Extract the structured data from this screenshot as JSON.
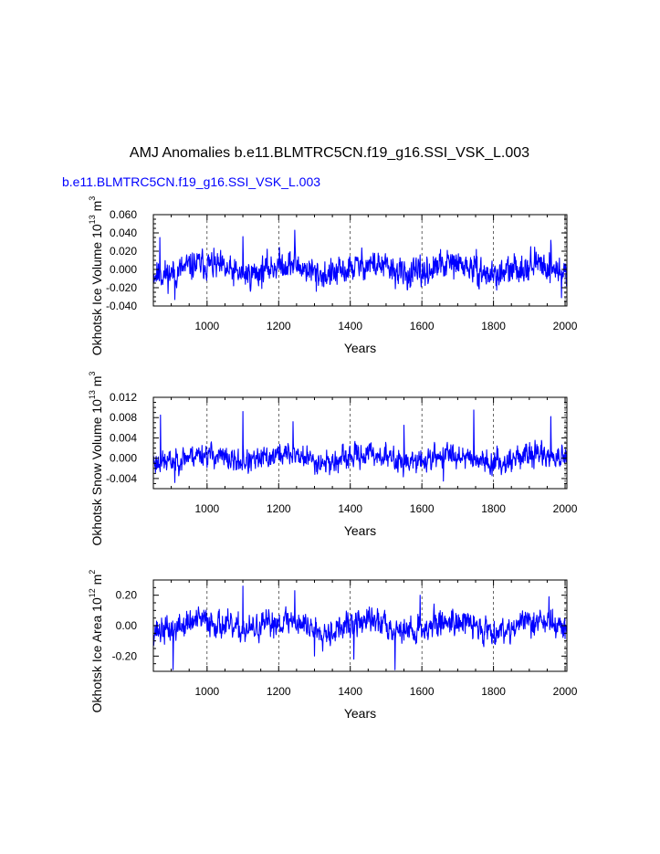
{
  "page": {
    "title": "AMJ Anomalies b.e11.BLMTRC5CN.f19_g16.SSI_VSK_L.003",
    "subtitle": "b.e11.BLMTRC5CN.f19_g16.SSI_VSK_L.003",
    "subtitle_color": "#0000ff",
    "line_color": "#0000ff"
  },
  "chart_data": [
    {
      "type": "line",
      "id": "ice-volume",
      "ylabel": "Okhotsk Ice Volume 10",
      "ylabel_sup": "13",
      "ylabel_unit": "m",
      "ylabel_unit_sup": "3",
      "xlabel": "Years",
      "xlim": [
        850,
        2005
      ],
      "ylim": [
        -0.04,
        0.06
      ],
      "xticks": [
        1000,
        1200,
        1400,
        1600,
        1800,
        2000
      ],
      "xtick_labels": [
        "1000",
        "1200",
        "1400",
        "1600",
        "1800",
        "2000"
      ],
      "yticks": [
        -0.04,
        -0.02,
        0.0,
        0.02,
        0.04,
        0.06
      ],
      "ytick_labels": [
        "-0.040",
        "-0.020",
        "0.000",
        "0.020",
        "0.040",
        "0.060"
      ],
      "amplitude": 0.015,
      "extremes": [
        [
          1245,
          0.043
        ],
        [
          1100,
          0.036
        ],
        [
          868,
          0.035
        ],
        [
          1960,
          0.032
        ],
        [
          910,
          -0.033
        ],
        [
          1990,
          -0.031
        ],
        [
          1305,
          -0.024
        ]
      ],
      "seed": 11
    },
    {
      "type": "line",
      "id": "snow-volume",
      "ylabel": "Okhotsk Snow Volume 10",
      "ylabel_sup": "13",
      "ylabel_unit": "m",
      "ylabel_unit_sup": "3",
      "xlabel": "Years",
      "xlim": [
        850,
        2005
      ],
      "ylim": [
        -0.006,
        0.012
      ],
      "xticks": [
        1000,
        1200,
        1400,
        1600,
        1800,
        2000
      ],
      "xtick_labels": [
        "1000",
        "1200",
        "1400",
        "1600",
        "1800",
        "2000"
      ],
      "yticks": [
        -0.004,
        0.0,
        0.004,
        0.008,
        0.012
      ],
      "ytick_labels": [
        "-0.004",
        "0.000",
        "0.004",
        "0.008",
        "0.012"
      ],
      "amplitude": 0.0022,
      "extremes": [
        [
          870,
          0.0085
        ],
        [
          1100,
          0.0092
        ],
        [
          1745,
          0.0095
        ],
        [
          1960,
          0.0082
        ],
        [
          1550,
          0.0065
        ],
        [
          1240,
          0.0072
        ],
        [
          910,
          -0.0048
        ],
        [
          1660,
          -0.0045
        ]
      ],
      "seed": 23
    },
    {
      "type": "line",
      "id": "ice-area",
      "ylabel": "Okhotsk Ice Area 10",
      "ylabel_sup": "12",
      "ylabel_unit": "m",
      "ylabel_unit_sup": "2",
      "xlabel": "Years",
      "xlim": [
        850,
        2005
      ],
      "ylim": [
        -0.3,
        0.3
      ],
      "xticks": [
        1000,
        1200,
        1400,
        1600,
        1800,
        2000
      ],
      "xtick_labels": [
        "1000",
        "1200",
        "1400",
        "1600",
        "1800",
        "2000"
      ],
      "yticks": [
        -0.2,
        0.0,
        0.2
      ],
      "ytick_labels": [
        "-0.20",
        "0.00",
        "0.20"
      ],
      "amplitude": 0.085,
      "extremes": [
        [
          1100,
          0.26
        ],
        [
          1245,
          0.23
        ],
        [
          1595,
          0.2
        ],
        [
          1955,
          0.19
        ],
        [
          905,
          -0.29
        ],
        [
          1525,
          -0.29
        ],
        [
          1410,
          -0.22
        ],
        [
          1300,
          -0.2
        ]
      ],
      "seed": 37
    }
  ]
}
